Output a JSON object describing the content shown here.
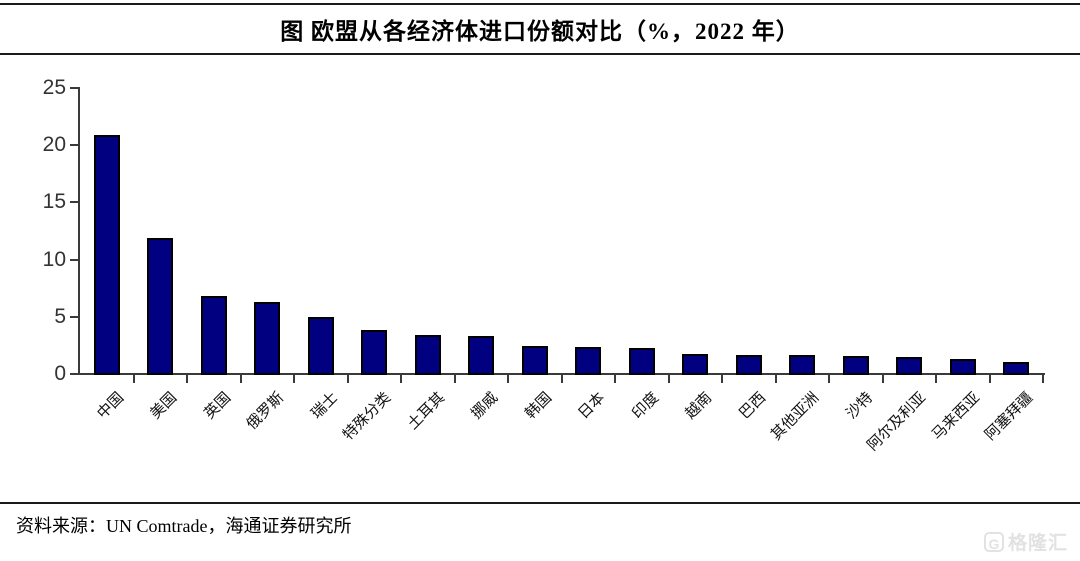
{
  "title": "图 欧盟从各经济体进口份额对比（%，2022 年）",
  "source": {
    "label": "资料来源：UN Comtrade，海通证券研究所"
  },
  "watermark": {
    "logo": "G",
    "text": "格隆汇"
  },
  "colors": {
    "bar_fill": "#000080",
    "bar_border": "#000000",
    "axis": "#3a3a3a",
    "tick_label": "#333333"
  },
  "chart_data": {
    "type": "bar",
    "title": "图 欧盟从各经济体进口份额对比（%，2022 年）",
    "categories": [
      "中国",
      "美国",
      "英国",
      "俄罗斯",
      "瑞士",
      "特殊分类",
      "土耳其",
      "挪威",
      "韩国",
      "日本",
      "印度",
      "越南",
      "巴西",
      "其他亚洲",
      "沙特",
      "阿尔及利亚",
      "马来西亚",
      "阿塞拜疆"
    ],
    "values": [
      20.8,
      11.8,
      6.7,
      6.2,
      4.9,
      3.8,
      3.3,
      3.2,
      2.4,
      2.3,
      2.2,
      1.7,
      1.6,
      1.6,
      1.5,
      1.4,
      1.2,
      1.0
    ],
    "xlabel": "",
    "ylabel": "",
    "unit": "%",
    "year": "2022",
    "ylim": [
      0,
      25
    ],
    "yticks": [
      0,
      5,
      10,
      15,
      20,
      25
    ],
    "grid": false,
    "legend_position": "none"
  }
}
